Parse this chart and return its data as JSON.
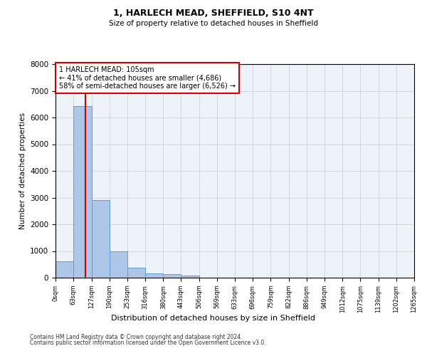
{
  "title": "1, HARLECH MEAD, SHEFFIELD, S10 4NT",
  "subtitle": "Size of property relative to detached houses in Sheffield",
  "xlabel": "Distribution of detached houses by size in Sheffield",
  "ylabel": "Number of detached properties",
  "bar_color": "#aec6e8",
  "bar_edge_color": "#5a9fd4",
  "grid_color": "#d0d8e8",
  "background_color": "#eef2f9",
  "bins": [
    0,
    63,
    127,
    190,
    253,
    316,
    380,
    443,
    506,
    569,
    633,
    696,
    759,
    822,
    886,
    949,
    1012,
    1075,
    1139,
    1202,
    1265
  ],
  "bin_labels": [
    "0sqm",
    "63sqm",
    "127sqm",
    "190sqm",
    "253sqm",
    "316sqm",
    "380sqm",
    "443sqm",
    "506sqm",
    "569sqm",
    "633sqm",
    "696sqm",
    "759sqm",
    "822sqm",
    "886sqm",
    "949sqm",
    "1012sqm",
    "1075sqm",
    "1139sqm",
    "1202sqm",
    "1265sqm"
  ],
  "values": [
    620,
    6430,
    2920,
    1000,
    380,
    170,
    130,
    90,
    0,
    0,
    0,
    0,
    0,
    0,
    0,
    0,
    0,
    0,
    0,
    0
  ],
  "property_size": 105,
  "property_label": "1 HARLECH MEAD: 105sqm",
  "annotation_line1": "← 41% of detached houses are smaller (4,686)",
  "annotation_line2": "58% of semi-detached houses are larger (6,526) →",
  "red_line_color": "#cc0000",
  "ylim": [
    0,
    8000
  ],
  "footnote1": "Contains HM Land Registry data © Crown copyright and database right 2024.",
  "footnote2": "Contains public sector information licensed under the Open Government Licence v3.0."
}
